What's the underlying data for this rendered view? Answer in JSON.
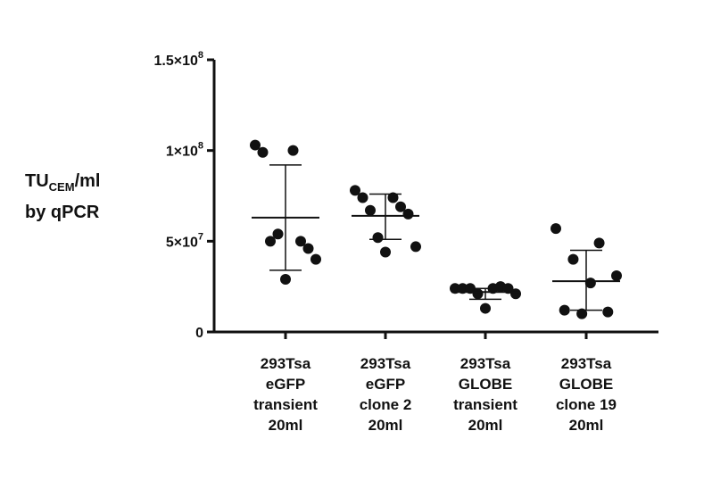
{
  "chart_data": {
    "type": "scatter",
    "title": "",
    "ylabel": {
      "main": "TU",
      "subscript": "CEM",
      "unit": "/ml",
      "line2": "by qPCR"
    },
    "xlabel": "",
    "ylim": [
      0,
      150000000
    ],
    "yticks": [
      {
        "value": 0,
        "label": "0"
      },
      {
        "value": 50000000,
        "label": "5×10",
        "exp": "7"
      },
      {
        "value": 100000000,
        "label": "1×10",
        "exp": "8"
      },
      {
        "value": 150000000,
        "label": "1.5×10",
        "exp": "8"
      }
    ],
    "categories": [
      [
        "293Tsa",
        "eGFP",
        "transient",
        "20ml"
      ],
      [
        "293Tsa",
        "eGFP",
        "clone 2",
        "20ml"
      ],
      [
        "293Tsa",
        "GLOBE",
        "transient",
        "20ml"
      ],
      [
        "293Tsa",
        "GLOBE",
        "clone 19",
        "20ml"
      ]
    ],
    "groups": [
      {
        "points": [
          103000000,
          100000000,
          99000000,
          50000000,
          50000000,
          46000000,
          54000000,
          40000000,
          29000000
        ],
        "mean": 63000000,
        "sd_low": 34000000,
        "sd_high": 92000000
      },
      {
        "points": [
          78000000,
          74000000,
          74000000,
          69000000,
          67000000,
          65000000,
          52000000,
          47000000,
          44000000
        ],
        "mean": 64000000,
        "sd_low": 51000000,
        "sd_high": 76000000
      },
      {
        "points": [
          24000000,
          24000000,
          24000000,
          25000000,
          24000000,
          24000000,
          21000000,
          21000000,
          13000000
        ],
        "mean": 22000000,
        "sd_low": 18000000,
        "sd_high": 24000000
      },
      {
        "points": [
          57000000,
          49000000,
          40000000,
          31000000,
          27000000,
          12000000,
          11000000,
          10000000
        ],
        "mean": 28000000,
        "sd_low": 12000000,
        "sd_high": 45000000
      }
    ]
  }
}
